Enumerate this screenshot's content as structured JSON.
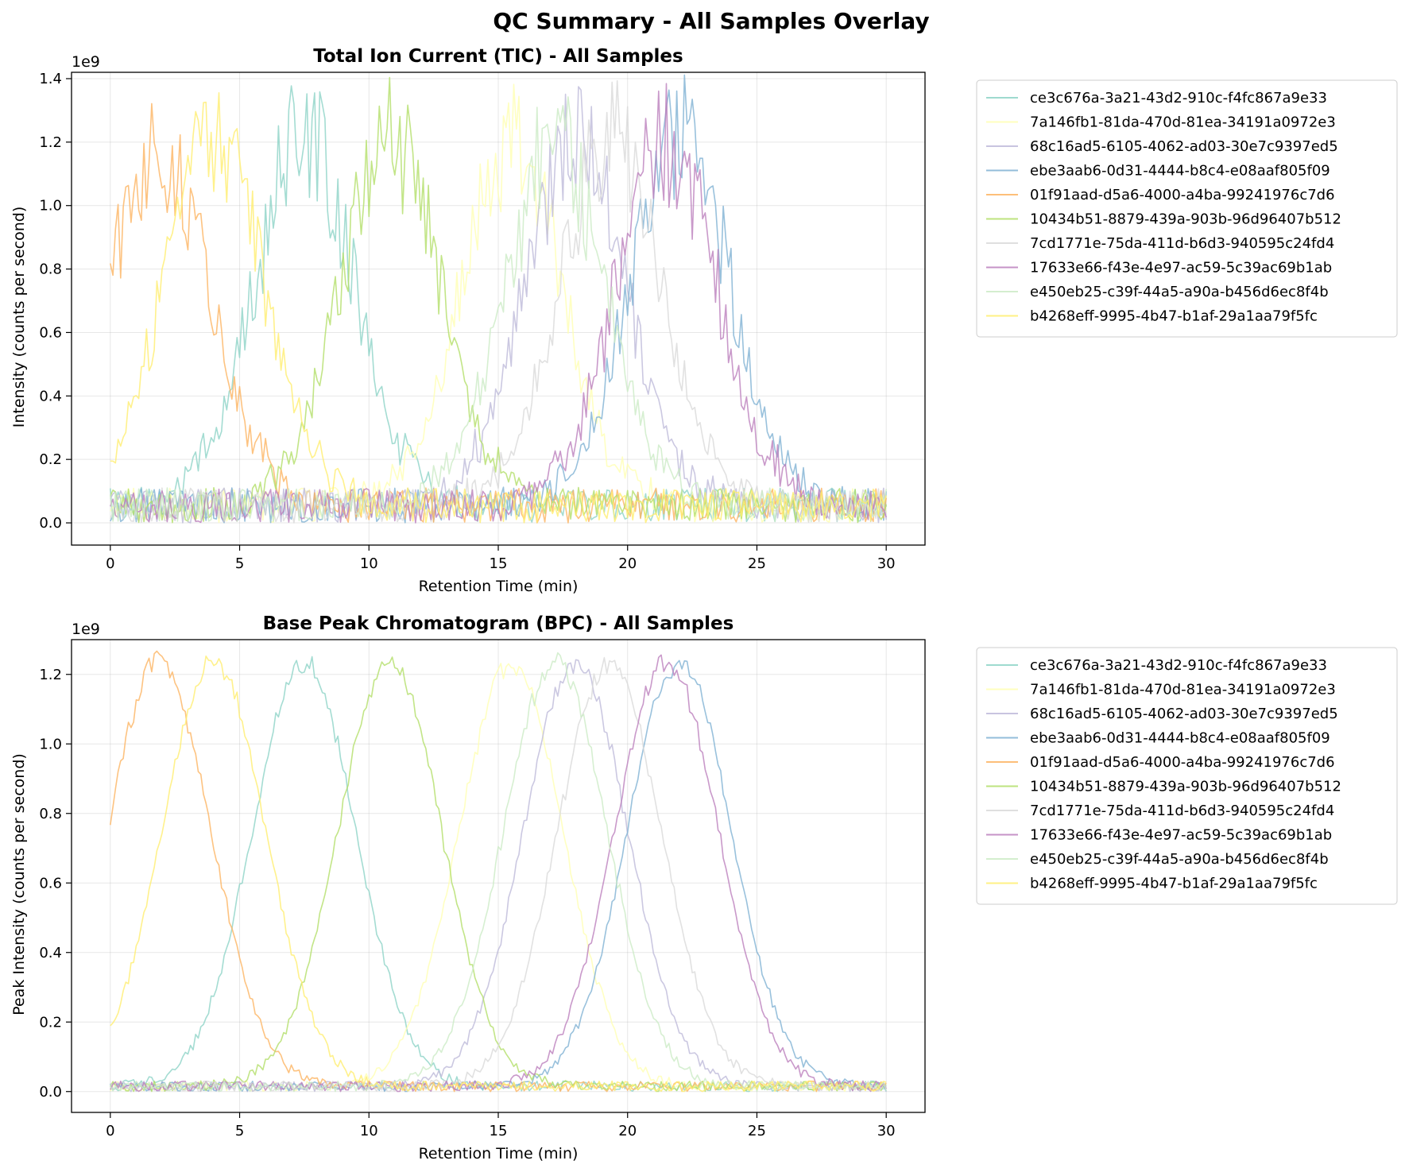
{
  "suptitle": "QC Summary - All Samples Overlay",
  "samples": [
    {
      "name": "ce3c676a-3a21-43d2-910c-f4fc867a9e33",
      "color": "#8dd3c7",
      "center": 7.5
    },
    {
      "name": "7a146fb1-81da-470d-81ea-34191a0972e3",
      "color": "#ffffb3",
      "center": 15.5
    },
    {
      "name": "68c16ad5-6105-4062-ad03-30e7c9397ed5",
      "color": "#bebada",
      "center": 18.0
    },
    {
      "name": "ebe3aab6-0d31-4444-b8c4-e08aaf805f09",
      "color": "#80b1d3",
      "center": 22.0
    },
    {
      "name": "01f91aad-d5a6-4000-a4ba-99241976c7d6",
      "color": "#fdb462",
      "center": 1.9
    },
    {
      "name": "10434b51-8879-439a-903b-96d96407b512",
      "color": "#b3de69",
      "center": 10.8
    },
    {
      "name": "7cd1771e-75da-411d-b6d3-940595c24fd4",
      "color": "#d9d9d9",
      "center": 19.3
    },
    {
      "name": "17633e66-f43e-4e97-ac59-5c39ac69b1ab",
      "color": "#bc80bd",
      "center": 21.5
    },
    {
      "name": "e450eb25-c39f-44a5-a90a-b456d6ec8f4b",
      "color": "#ccebc5",
      "center": 17.2
    },
    {
      "name": "b4268eff-9995-4b47-b1af-29a1aa79f5fc",
      "color": "#ffed6f",
      "center": 4.0
    }
  ],
  "chart_data": [
    {
      "type": "line",
      "title": "Total Ion Current (TIC) - All Samples",
      "xlabel": "Retention Time (min)",
      "ylabel": "Intensity (counts per second)",
      "y_multiplier_label": "1e9",
      "xlim": [
        -1.5,
        31.5
      ],
      "ylim": [
        -0.07,
        1.42
      ],
      "xticks": [
        0,
        5,
        10,
        15,
        20,
        25,
        30
      ],
      "yticks": [
        0.0,
        0.2,
        0.4,
        0.6,
        0.8,
        1.0,
        1.2,
        1.4
      ],
      "ytick_labels": [
        "0.0",
        "0.2",
        "0.4",
        "0.6",
        "0.8",
        "1.0",
        "1.2",
        "1.4"
      ],
      "grid": true,
      "legend_position": "outside-right",
      "x_range": [
        0,
        30
      ],
      "peak_height": 1.18,
      "peak_sigma": 2.0,
      "noise": "high",
      "series": [
        {
          "name": "ce3c676a-3a21-43d2-910c-f4fc867a9e33"
        },
        {
          "name": "7a146fb1-81da-470d-81ea-34191a0972e3"
        },
        {
          "name": "68c16ad5-6105-4062-ad03-30e7c9397ed5"
        },
        {
          "name": "ebe3aab6-0d31-4444-b8c4-e08aaf805f09"
        },
        {
          "name": "01f91aad-d5a6-4000-a4ba-99241976c7d6"
        },
        {
          "name": "10434b51-8879-439a-903b-96d96407b512"
        },
        {
          "name": "7cd1771e-75da-411d-b6d3-940595c24fd4"
        },
        {
          "name": "17633e66-f43e-4e97-ac59-5c39ac69b1ab"
        },
        {
          "name": "e450eb25-c39f-44a5-a90a-b456d6ec8f4b"
        },
        {
          "name": "b4268eff-9995-4b47-b1af-29a1aa79f5fc"
        }
      ]
    },
    {
      "type": "line",
      "title": "Base Peak Chromatogram (BPC) - All Samples",
      "xlabel": "Retention Time (min)",
      "ylabel": "Peak Intensity (counts per second)",
      "y_multiplier_label": "1e9",
      "xlim": [
        -1.5,
        31.5
      ],
      "ylim": [
        -0.06,
        1.3
      ],
      "xticks": [
        0,
        5,
        10,
        15,
        20,
        25,
        30
      ],
      "yticks": [
        0.0,
        0.2,
        0.4,
        0.6,
        0.8,
        1.0,
        1.2
      ],
      "ytick_labels": [
        "0.0",
        "0.2",
        "0.4",
        "0.6",
        "0.8",
        "1.0",
        "1.2"
      ],
      "grid": true,
      "legend_position": "outside-right",
      "x_range": [
        0,
        30
      ],
      "peak_height": 1.22,
      "peak_sigma": 2.0,
      "noise": "low",
      "series": [
        {
          "name": "ce3c676a-3a21-43d2-910c-f4fc867a9e33"
        },
        {
          "name": "7a146fb1-81da-470d-81ea-34191a0972e3"
        },
        {
          "name": "68c16ad5-6105-4062-ad03-30e7c9397ed5"
        },
        {
          "name": "ebe3aab6-0d31-4444-b8c4-e08aaf805f09"
        },
        {
          "name": "01f91aad-d5a6-4000-a4ba-99241976c7d6"
        },
        {
          "name": "10434b51-8879-439a-903b-96d96407b512"
        },
        {
          "name": "7cd1771e-75da-411d-b6d3-940595c24fd4"
        },
        {
          "name": "17633e66-f43e-4e97-ac59-5c39ac69b1ab"
        },
        {
          "name": "e450eb25-c39f-44a5-a90a-b456d6ec8f4b"
        },
        {
          "name": "b4268eff-9995-4b47-b1af-29a1aa79f5fc"
        }
      ]
    }
  ]
}
